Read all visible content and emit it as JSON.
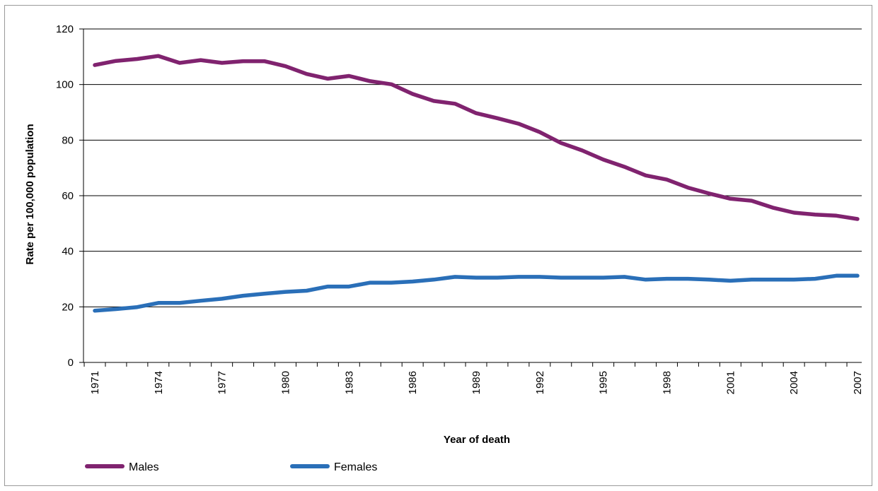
{
  "chart_data": {
    "type": "line",
    "title": "",
    "xlabel": "Year of death",
    "ylabel": "Rate per 100,000 population",
    "ylim": [
      0,
      120
    ],
    "yticks": [
      0,
      20,
      40,
      60,
      80,
      100,
      120
    ],
    "xlim": [
      1971,
      2007
    ],
    "xticks": [
      1971,
      1974,
      1977,
      1980,
      1983,
      1986,
      1989,
      1992,
      1995,
      1998,
      2001,
      2004,
      2007
    ],
    "grid": "horizontal",
    "legend_position": "bottom",
    "x": [
      1971,
      1972,
      1973,
      1974,
      1975,
      1976,
      1977,
      1978,
      1979,
      1980,
      1981,
      1982,
      1983,
      1984,
      1985,
      1986,
      1987,
      1988,
      1989,
      1990,
      1991,
      1992,
      1993,
      1994,
      1995,
      1996,
      1997,
      1998,
      1999,
      2000,
      2001,
      2002,
      2003,
      2004,
      2005,
      2006,
      2007
    ],
    "series": [
      {
        "name": "Males",
        "color": "#80236f",
        "values": [
          107,
          108.5,
          109.2,
          110.3,
          107.8,
          108.8,
          107.8,
          108.4,
          108.4,
          106.6,
          103.8,
          102.1,
          103.1,
          101.2,
          100.1,
          96.6,
          94.1,
          93.1,
          89.7,
          87.9,
          85.9,
          82.9,
          79.0,
          76.3,
          73.0,
          70.4,
          67.3,
          65.8,
          62.9,
          60.8,
          58.9,
          58.2,
          55.7,
          53.9,
          53.2,
          52.8,
          51.6
        ]
      },
      {
        "name": "Females",
        "color": "#2a6fb8",
        "values": [
          18.6,
          19.2,
          19.9,
          21.4,
          21.4,
          22.2,
          22.9,
          24.0,
          24.7,
          25.4,
          25.8,
          27.3,
          27.3,
          28.7,
          28.7,
          29.1,
          29.8,
          30.8,
          30.5,
          30.5,
          30.8,
          30.8,
          30.5,
          30.5,
          30.5,
          30.8,
          29.8,
          30.1,
          30.1,
          29.8,
          29.4,
          29.8,
          29.8,
          29.8,
          30.1,
          31.2,
          31.2
        ]
      }
    ]
  }
}
